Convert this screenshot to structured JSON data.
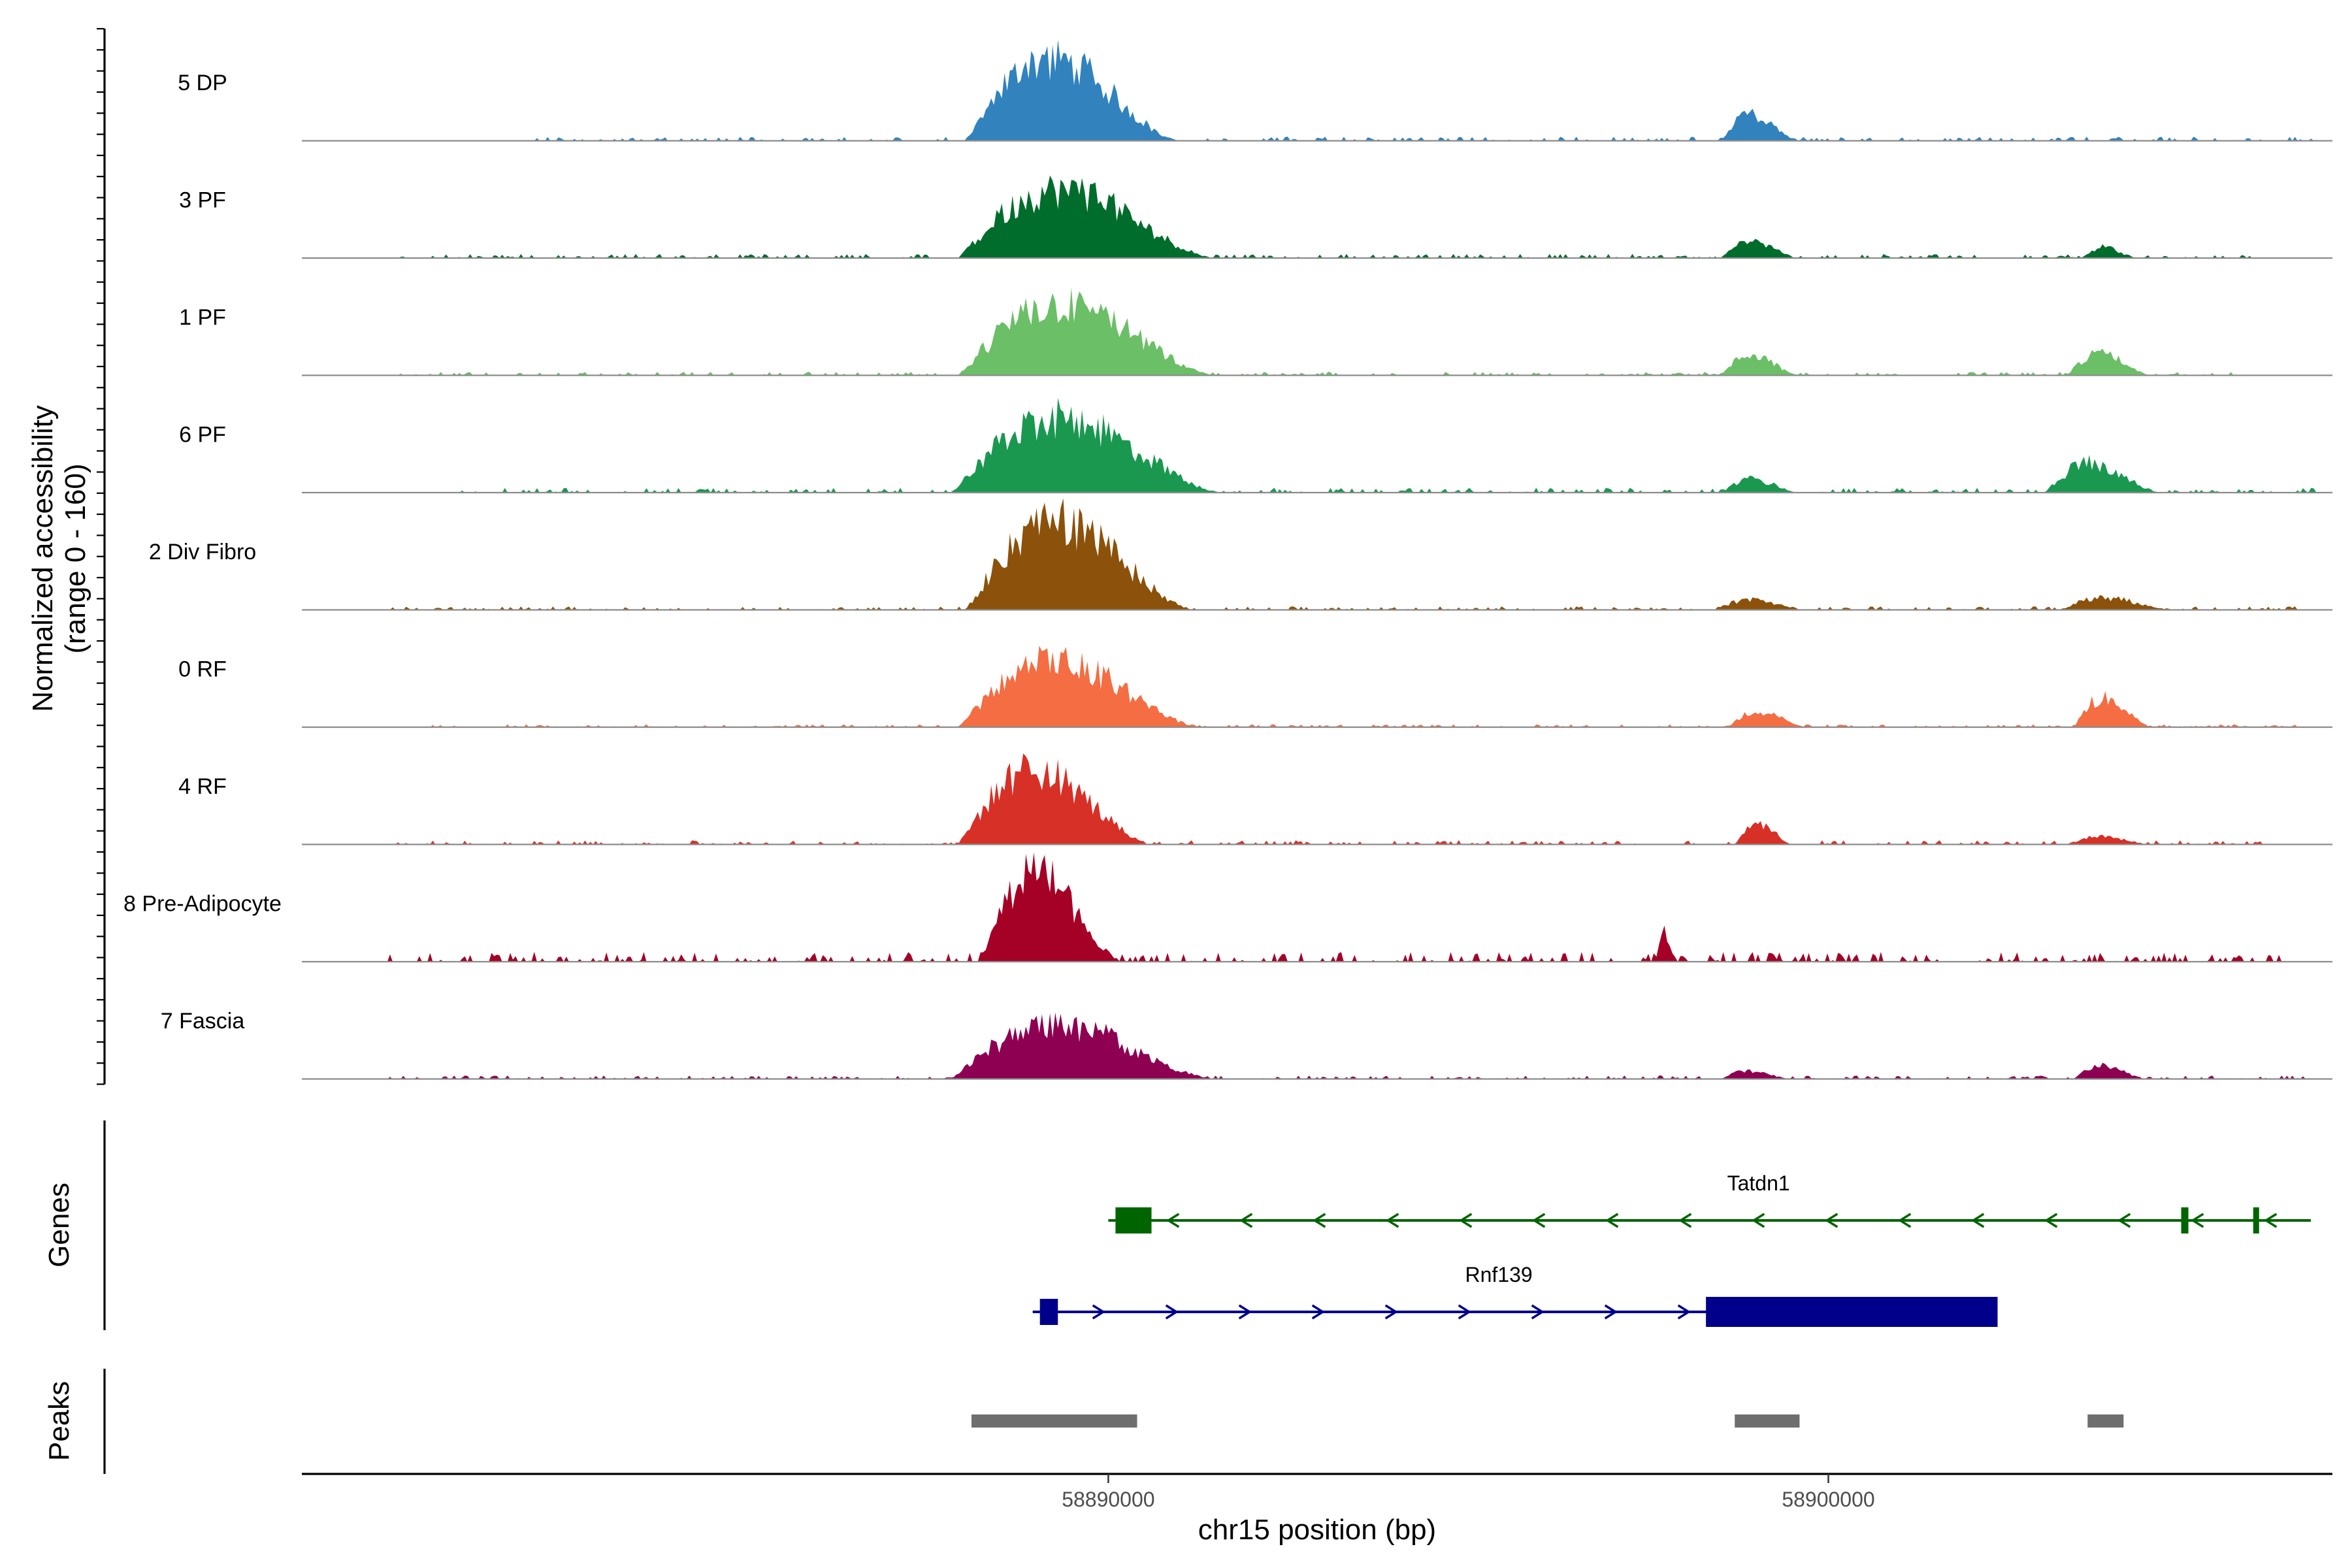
{
  "chart_data": {
    "type": "area",
    "title": "",
    "xlabel": "chr15 position (bp)",
    "ylabel_line1": "Normalized accessibility",
    "ylabel_line2": "(range 0 - 160)",
    "ylim": [
      0,
      160
    ],
    "xlim": [
      58878800,
      58907000
    ],
    "x_ticks": [
      {
        "value": 58890000,
        "label": "58890000"
      },
      {
        "value": 58900000,
        "label": "58900000"
      }
    ],
    "track_panel_labels": {
      "genes": "Genes",
      "peaks": "Peaks"
    },
    "series": [
      {
        "name": "5 DP",
        "color": "#3182BD",
        "peaks": [
          {
            "start": 58888000,
            "end": 58891000,
            "max": 150
          },
          {
            "start": 58898500,
            "end": 58899600,
            "max": 48
          },
          {
            "start": 58882000,
            "end": 58906800,
            "max": 6
          }
        ]
      },
      {
        "name": "3 PF",
        "color": "#006D2C",
        "peaks": [
          {
            "start": 58887900,
            "end": 58891500,
            "max": 125
          },
          {
            "start": 58898500,
            "end": 58899600,
            "max": 30
          },
          {
            "start": 58903500,
            "end": 58904300,
            "max": 20
          },
          {
            "start": 58880000,
            "end": 58906000,
            "max": 6
          }
        ]
      },
      {
        "name": "1 PF",
        "color": "#6BBF67",
        "peaks": [
          {
            "start": 58887900,
            "end": 58891500,
            "max": 130
          },
          {
            "start": 58898500,
            "end": 58899600,
            "max": 38
          },
          {
            "start": 58903300,
            "end": 58904500,
            "max": 40
          },
          {
            "start": 58880000,
            "end": 58906000,
            "max": 5
          }
        ]
      },
      {
        "name": "6 PF",
        "color": "#1A9850",
        "peaks": [
          {
            "start": 58887800,
            "end": 58891600,
            "max": 135
          },
          {
            "start": 58898500,
            "end": 58899600,
            "max": 25
          },
          {
            "start": 58903000,
            "end": 58904600,
            "max": 55
          },
          {
            "start": 58881000,
            "end": 58906800,
            "max": 7
          }
        ]
      },
      {
        "name": "2 Div Fibro",
        "color": "#8C510A",
        "peaks": [
          {
            "start": 58888000,
            "end": 58891200,
            "max": 160
          },
          {
            "start": 58898400,
            "end": 58899700,
            "max": 18
          },
          {
            "start": 58903200,
            "end": 58904800,
            "max": 22
          },
          {
            "start": 58880000,
            "end": 58906500,
            "max": 5
          }
        ]
      },
      {
        "name": "0 RF",
        "color": "#F46D43",
        "peaks": [
          {
            "start": 58887900,
            "end": 58891300,
            "max": 120
          },
          {
            "start": 58898600,
            "end": 58899700,
            "max": 30
          },
          {
            "start": 58903400,
            "end": 58904500,
            "max": 55
          },
          {
            "start": 58880500,
            "end": 58906500,
            "max": 4
          }
        ]
      },
      {
        "name": "4 RF",
        "color": "#D73027",
        "peaks": [
          {
            "start": 58887900,
            "end": 58890600,
            "max": 135
          },
          {
            "start": 58898700,
            "end": 58899500,
            "max": 40
          },
          {
            "start": 58903300,
            "end": 58904500,
            "max": 15
          },
          {
            "start": 58880000,
            "end": 58906000,
            "max": 6
          }
        ]
      },
      {
        "name": "8 Pre-Adipocyte",
        "color": "#A50026",
        "peaks": [
          {
            "start": 58888200,
            "end": 58890200,
            "max": 160
          },
          {
            "start": 58897600,
            "end": 58897900,
            "max": 55
          },
          {
            "start": 58880000,
            "end": 58906500,
            "max": 14
          }
        ]
      },
      {
        "name": "7 Fascia",
        "color": "#8E0152",
        "peaks": [
          {
            "start": 58887800,
            "end": 58891500,
            "max": 100
          },
          {
            "start": 58898500,
            "end": 58899500,
            "max": 15
          },
          {
            "start": 58903400,
            "end": 58904400,
            "max": 25
          },
          {
            "start": 58880000,
            "end": 58906600,
            "max": 5
          }
        ]
      }
    ],
    "genes": [
      {
        "name": "Tatdn1",
        "strand": "-",
        "color": "#006400",
        "start": 58890000,
        "end": 58906700,
        "exons": [
          {
            "start": 58890100,
            "end": 58890600,
            "type": "utr"
          },
          {
            "start": 58904900,
            "end": 58905000,
            "type": "utr"
          },
          {
            "start": 58905900,
            "end": 58905950,
            "type": "utr"
          }
        ]
      },
      {
        "name": "Rnf139",
        "strand": "+",
        "color": "#00008B",
        "start": 58888950,
        "end": 58902350,
        "exons": [
          {
            "start": 58889050,
            "end": 58889300,
            "type": "utr"
          },
          {
            "start": 58898300,
            "end": 58902350,
            "type": "cds"
          }
        ]
      }
    ],
    "peaks_track": [
      {
        "start": 58888100,
        "end": 58890400
      },
      {
        "start": 58898700,
        "end": 58899600
      },
      {
        "start": 58903600,
        "end": 58904100
      }
    ],
    "peak_color": "#6E6E6E"
  }
}
